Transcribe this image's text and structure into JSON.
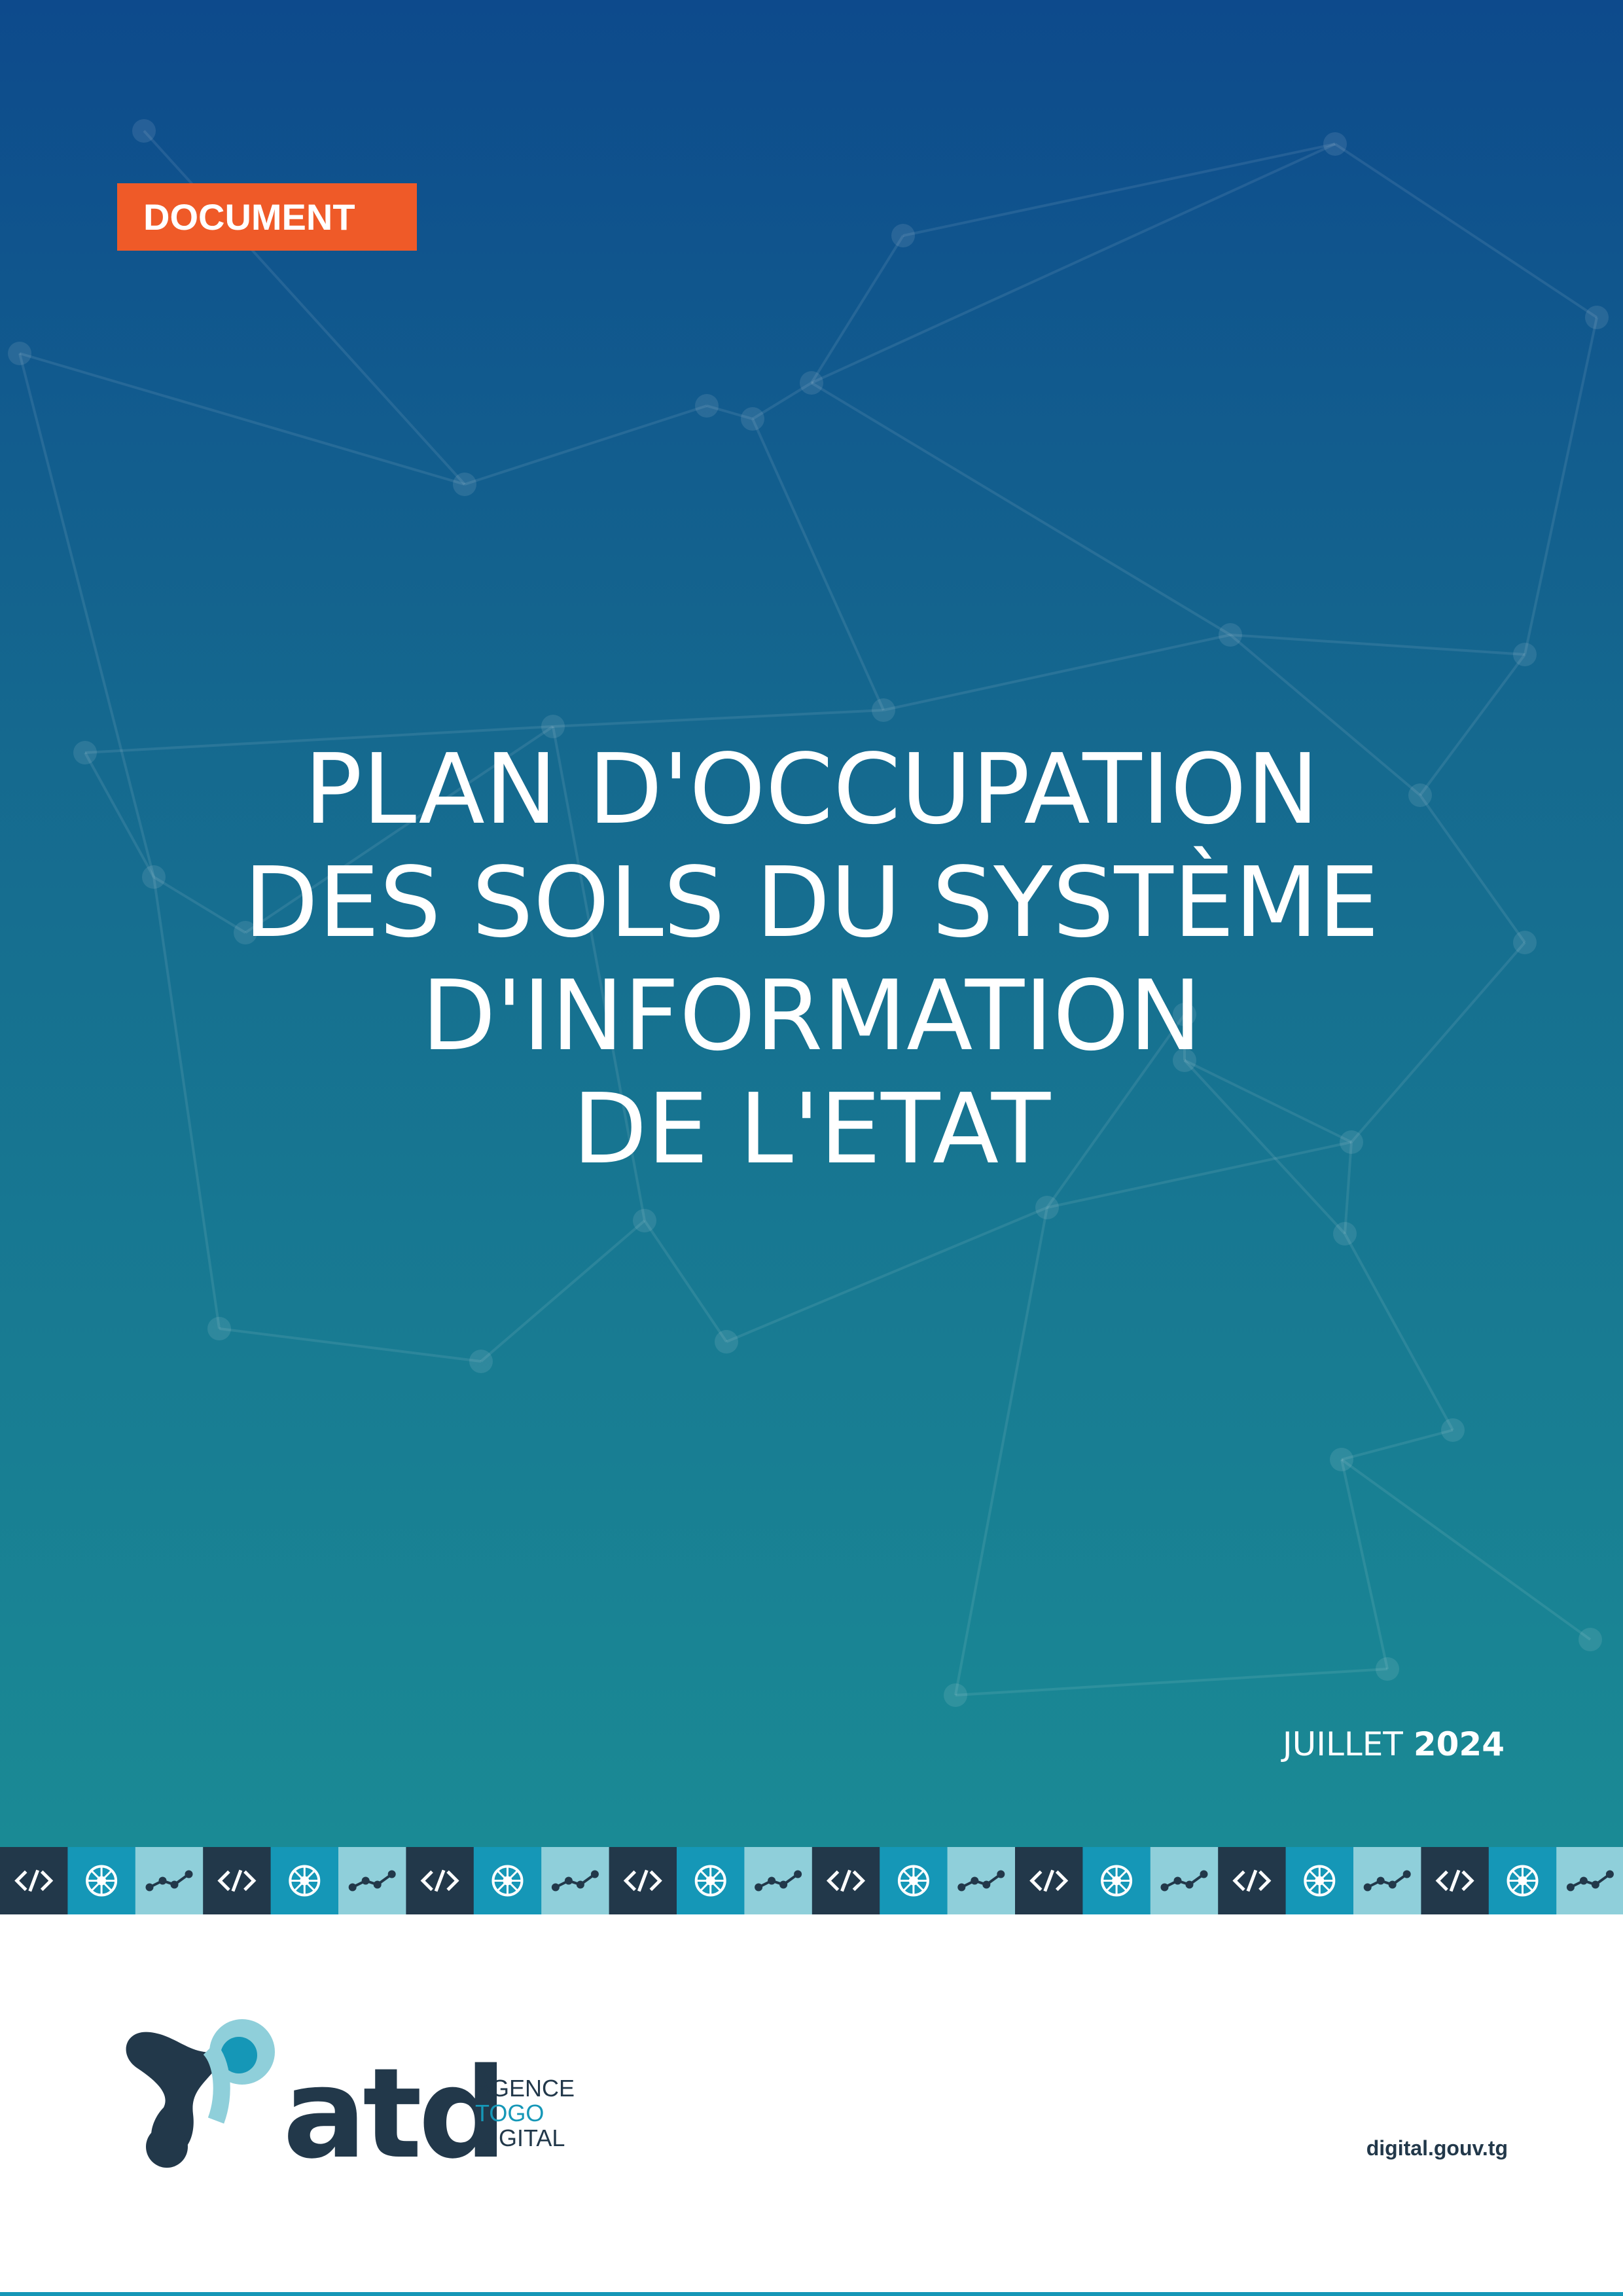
{
  "header": {
    "badge": "DOCUMENT"
  },
  "title": {
    "lines": [
      "PLAN D'OCCUPATION",
      "DES SOLS DU SYSTÈME",
      "D'INFORMATION",
      "DE L'ETAT"
    ]
  },
  "date": {
    "month": "JUILLET",
    "year": "2024"
  },
  "footer": {
    "logo_mark": "atd",
    "agency_lines": [
      "AGENCE",
      "TOGO",
      "DIGITAL"
    ],
    "website": "digital.gouv.tg"
  }
}
